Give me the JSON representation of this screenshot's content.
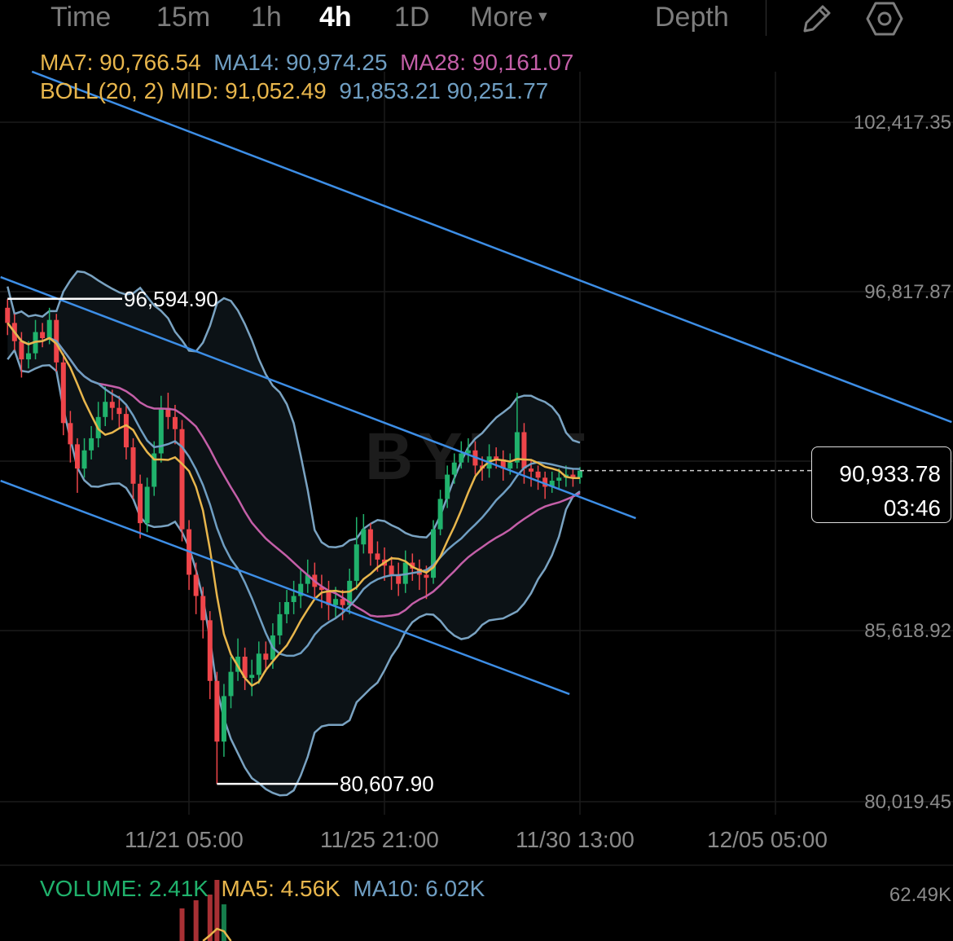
{
  "toolbar": {
    "tabs": [
      "Time",
      "15m",
      "1h",
      "4h",
      "1D",
      "More"
    ],
    "active_tab": "4h",
    "depth_label": "Depth",
    "icons": [
      "pencil-icon",
      "settings-hexagon-icon",
      "caret-down-icon"
    ]
  },
  "legend": {
    "ma7": "MA7: 90,766.54",
    "ma14": "MA14: 90,974.25",
    "ma28": "MA28: 90,161.07",
    "boll": "BOLL(20, 2) MID: 91,052.49",
    "boll_bands": "91,853.21 90,251.77"
  },
  "volume_legend": {
    "volume": "VOLUME: 2.41K",
    "ma5": "MA5: 4.56K",
    "ma10": "MA10: 6.02K",
    "axis_max": "62.49K"
  },
  "watermark": "BYBIT",
  "current_price": {
    "price": "90,933.78",
    "countdown": "03:46"
  },
  "markers": {
    "high": "96,594.90",
    "low": "80,607.90"
  },
  "colors": {
    "up": "#20b26c",
    "down": "#ef454a",
    "ma7": "#e8b64c",
    "ma14": "#6f9ec2",
    "ma28": "#c45fa8",
    "boll": "#7aa3c2",
    "trendline": "#3d8ee6",
    "volume": "#20b26c"
  },
  "chart_data": {
    "type": "candlestick",
    "interval": "4h",
    "y_ticks": [
      "102,417.35",
      "96,817.87",
      "85,618.92",
      "80,019.45"
    ],
    "y_tick_values": [
      102417.35,
      96817.87,
      85618.92,
      80019.45
    ],
    "ylim": [
      80019.45,
      102417.35
    ],
    "x_ticks": [
      "11/21 05:00",
      "11/25 21:00",
      "11/30 13:00",
      "12/05 05:00"
    ],
    "grid": true,
    "open": [
      96300,
      95800,
      95200,
      94600,
      94800,
      95500,
      95300,
      95900,
      94500,
      92500,
      91800,
      91000,
      91600,
      92000,
      92700,
      93200,
      93000,
      92800,
      91700,
      90500,
      89200,
      90400,
      91500,
      93000,
      92700,
      92300,
      89000,
      87500,
      86800,
      86000,
      84000,
      82000,
      83500,
      84300,
      84800,
      84100,
      84200,
      84900,
      84700,
      85500,
      86200,
      86600,
      86800,
      87200,
      87500,
      87100,
      87000,
      86500,
      86700,
      86500,
      87300,
      88500,
      89000,
      88200,
      88000,
      87800,
      87500,
      87200,
      87900,
      87700,
      87500,
      87400,
      89000,
      90000,
      90800,
      91200,
      91500,
      91600,
      91100,
      91000,
      91400,
      91300,
      91000,
      91200,
      92200,
      91000,
      90900,
      90700,
      90400,
      90600,
      90700,
      90800,
      90700
    ],
    "high": [
      96594.9,
      96100,
      95500,
      95200,
      95900,
      95800,
      96300,
      96100,
      94800,
      92900,
      92000,
      92000,
      92400,
      93200,
      93700,
      93600,
      93400,
      93100,
      92000,
      90800,
      90700,
      91900,
      93400,
      93500,
      93100,
      92600,
      89300,
      87900,
      87100,
      86300,
      84300,
      83900,
      84800,
      85400,
      85100,
      84700,
      85300,
      85300,
      85900,
      86600,
      87000,
      87300,
      87700,
      88000,
      87900,
      87500,
      87300,
      87100,
      87000,
      87700,
      89400,
      89500,
      89200,
      88600,
      88400,
      88100,
      87900,
      88300,
      88200,
      88000,
      87800,
      89300,
      90300,
      91100,
      91500,
      91900,
      92000,
      91900,
      91400,
      91800,
      91700,
      91600,
      91500,
      93500,
      92500,
      91300,
      91100,
      90900,
      90900,
      91000,
      91100,
      91000,
      91050
    ],
    "low": [
      95400,
      94900,
      94000,
      94300,
      94600,
      95000,
      95100,
      94200,
      92100,
      91200,
      90200,
      90700,
      91300,
      91700,
      92400,
      92600,
      92300,
      91300,
      90000,
      88700,
      88900,
      90100,
      91200,
      92300,
      91800,
      88600,
      87000,
      86200,
      85400,
      83400,
      80607.9,
      81500,
      83100,
      84000,
      83700,
      83500,
      83900,
      84300,
      84400,
      85200,
      85900,
      86200,
      86400,
      86900,
      86700,
      86400,
      86000,
      86100,
      86000,
      86200,
      87000,
      88200,
      87800,
      87600,
      87300,
      87000,
      86800,
      86900,
      87300,
      87000,
      86700,
      87200,
      88800,
      89700,
      90500,
      91000,
      91200,
      90800,
      90600,
      90700,
      91000,
      90600,
      90800,
      91000,
      90500,
      90400,
      90300,
      90000,
      90200,
      90300,
      90400,
      90400,
      90500
    ],
    "close": [
      95800,
      95200,
      94600,
      94800,
      95500,
      95300,
      95900,
      94500,
      92500,
      91800,
      91000,
      91600,
      92000,
      92700,
      93200,
      93000,
      92800,
      91700,
      90500,
      89200,
      90400,
      91500,
      93000,
      92700,
      92300,
      89000,
      87500,
      86800,
      86000,
      84000,
      82000,
      83500,
      84300,
      84800,
      84100,
      84200,
      84900,
      84700,
      85500,
      86200,
      86600,
      86800,
      87200,
      87500,
      87100,
      87000,
      86500,
      86700,
      86500,
      87300,
      88500,
      89000,
      88200,
      88000,
      87800,
      87500,
      87200,
      87900,
      87700,
      87500,
      87400,
      89000,
      90000,
      90800,
      91200,
      91500,
      91600,
      91100,
      91000,
      91400,
      91300,
      91000,
      91200,
      92200,
      91000,
      90900,
      90700,
      90400,
      90600,
      90700,
      90800,
      90700,
      90934
    ],
    "last_price": 90933.78,
    "indicators": {
      "ma": [
        7,
        14,
        28
      ],
      "boll": {
        "period": 20,
        "mult": 2
      }
    },
    "trendlines": [
      {
        "from": [
          "11/17 11:00",
          104083
        ],
        "to": [
          "12/09 10:00",
          92533
        ]
      },
      {
        "from": [
          "11/16 17:00",
          97314
        ],
        "to": [
          "12/01 21:00",
          89363
        ]
      },
      {
        "from": [
          "11/16 17:00",
          90599
        ],
        "to": [
          "11/30 07:00",
          83565
        ]
      }
    ]
  }
}
